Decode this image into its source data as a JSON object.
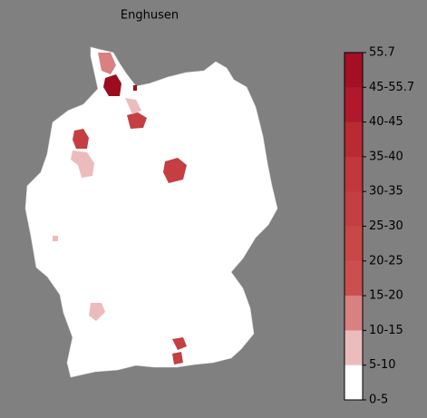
{
  "title": "Enghusen",
  "legend": {
    "labels": [
      "55.7",
      "45-55.7",
      "40-45",
      "35-40",
      "30-35",
      "25-30",
      "20-25",
      "15-20",
      "10-15",
      "5-10",
      "0-5"
    ],
    "colors": [
      "#a50f24",
      "#b2182b",
      "#ba2a33",
      "#c0373c",
      "#c43e42",
      "#c84848",
      "#cc4f4f",
      "#d98080",
      "#ecbcbc",
      "#ffffff"
    ]
  }
}
